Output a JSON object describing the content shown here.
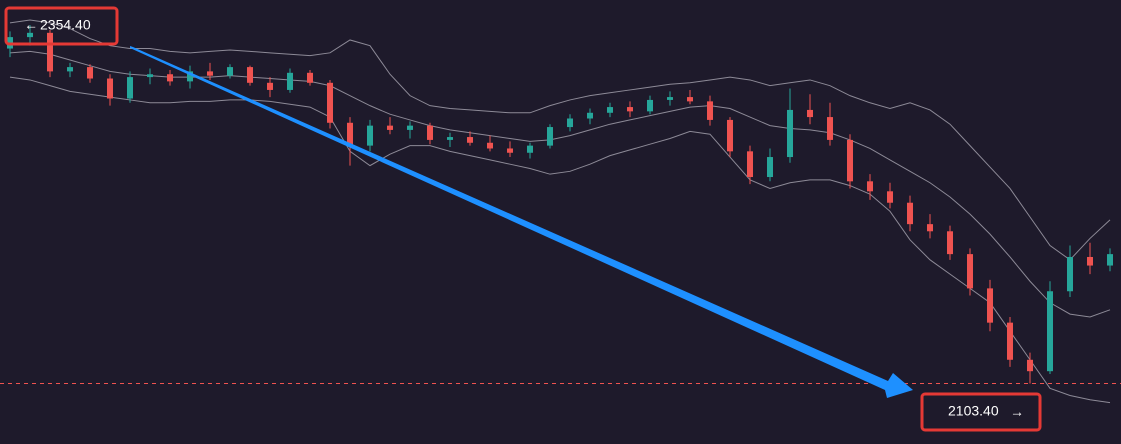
{
  "chart_data": {
    "type": "candlestick",
    "open": [
      2338,
      2346,
      2349,
      2322,
      2325,
      2317,
      2303,
      2318,
      2320,
      2315,
      2322,
      2319,
      2325,
      2314,
      2309,
      2321,
      2314,
      2286,
      2270,
      2284,
      2281,
      2284,
      2274,
      2276,
      2272,
      2268,
      2265,
      2270,
      2283,
      2289,
      2293,
      2297,
      2294,
      2302,
      2304,
      2301,
      2288,
      2266,
      2248,
      2262,
      2295,
      2290,
      2274,
      2245,
      2238,
      2230,
      2215,
      2210,
      2194,
      2170,
      2146,
      2120,
      2112,
      2168,
      2192,
      2186
    ],
    "high": [
      2350,
      2354.4,
      2351,
      2328,
      2327,
      2320,
      2322,
      2324,
      2323,
      2326,
      2328,
      2327,
      2326,
      2318,
      2324,
      2323,
      2316,
      2290,
      2288,
      2290,
      2287,
      2286,
      2279,
      2280,
      2277,
      2273,
      2272,
      2285,
      2292,
      2296,
      2300,
      2301,
      2305,
      2308,
      2309,
      2305,
      2290,
      2270,
      2268,
      2310,
      2306,
      2300,
      2278,
      2250,
      2244,
      2235,
      2222,
      2214,
      2198,
      2176,
      2150,
      2125,
      2175,
      2200,
      2202,
      2198
    ],
    "low": [
      2332,
      2340,
      2318,
      2318,
      2314,
      2298,
      2300,
      2313,
      2312,
      2310,
      2316,
      2317,
      2312,
      2304,
      2307,
      2312,
      2282,
      2256,
      2266,
      2278,
      2275,
      2271,
      2269,
      2270,
      2266,
      2262,
      2261,
      2268,
      2280,
      2285,
      2290,
      2290,
      2292,
      2298,
      2299,
      2284,
      2262,
      2243,
      2245,
      2258,
      2285,
      2270,
      2240,
      2232,
      2226,
      2210,
      2205,
      2190,
      2165,
      2140,
      2115,
      2103.4,
      2110,
      2164,
      2180,
      2182
    ],
    "close": [
      2346,
      2349,
      2322,
      2325,
      2317,
      2303,
      2318,
      2320,
      2315,
      2322,
      2319,
      2325,
      2314,
      2309,
      2321,
      2314,
      2286,
      2270,
      2284,
      2281,
      2284,
      2274,
      2276,
      2272,
      2268,
      2265,
      2270,
      2283,
      2289,
      2293,
      2297,
      2294,
      2302,
      2304,
      2301,
      2288,
      2266,
      2248,
      2262,
      2295,
      2290,
      2274,
      2245,
      2238,
      2230,
      2215,
      2210,
      2194,
      2170,
      2146,
      2120,
      2112,
      2168,
      2192,
      2186,
      2194
    ],
    "up_color": "#26a69a",
    "down_color": "#ef5350",
    "series": [
      {
        "color": "#8d8a97",
        "values": [
          2356,
          2358,
          2356,
          2352,
          2345,
          2340,
          2338,
          2338,
          2336,
          2335,
          2336,
          2337,
          2336,
          2335,
          2334,
          2333,
          2335,
          2344,
          2340,
          2320,
          2305,
          2298,
          2296,
          2295,
          2294,
          2293,
          2293,
          2298,
          2302,
          2305,
          2307,
          2309,
          2311,
          2313,
          2314,
          2316,
          2318,
          2316,
          2312,
          2314,
          2316,
          2312,
          2305,
          2300,
          2296,
          2300,
          2295,
          2285,
          2270,
          2255,
          2240,
          2220,
          2200,
          2190,
          2205,
          2218
        ]
      },
      {
        "color": "#8d8a97",
        "values": [
          2335,
          2336,
          2334,
          2330,
          2326,
          2322,
          2320,
          2319,
          2318,
          2318,
          2318,
          2319,
          2318,
          2317,
          2316,
          2315,
          2312,
          2305,
          2298,
          2292,
          2288,
          2284,
          2281,
          2279,
          2277,
          2275,
          2273,
          2274,
          2277,
          2281,
          2285,
          2288,
          2291,
          2294,
          2297,
          2298,
          2296,
          2290,
          2284,
          2282,
          2281,
          2279,
          2274,
          2268,
          2260,
          2252,
          2244,
          2234,
          2222,
          2208,
          2192,
          2175,
          2160,
          2152,
          2150,
          2155
        ]
      },
      {
        "color": "#8d8a97",
        "values": [
          2318,
          2316,
          2312,
          2308,
          2306,
          2304,
          2302,
          2300,
          2300,
          2301,
          2301,
          2302,
          2302,
          2301,
          2299,
          2297,
          2290,
          2266,
          2256,
          2264,
          2270,
          2270,
          2266,
          2263,
          2260,
          2257,
          2254,
          2250,
          2252,
          2257,
          2263,
          2267,
          2271,
          2275,
          2280,
          2278,
          2262,
          2246,
          2240,
          2244,
          2246,
          2246,
          2242,
          2236,
          2224,
          2204,
          2190,
          2180,
          2170,
          2160,
          2140,
          2120,
          2100,
          2095,
          2092,
          2090
        ]
      }
    ],
    "ylim": [
      2061,
      2372
    ],
    "annotations": [
      {
        "value": 2354.4,
        "label": "2354.40"
      },
      {
        "value": 2103.4,
        "label": "2103.40"
      }
    ]
  }
}
